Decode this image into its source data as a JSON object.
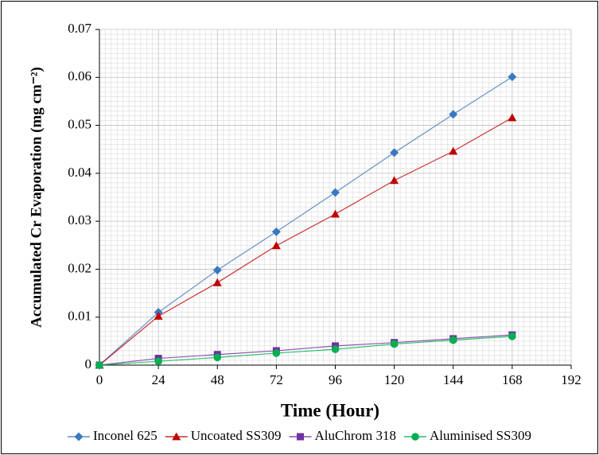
{
  "chart_data": {
    "type": "line",
    "x_label": "Time (Hour)",
    "y_label": "Accumulated Cr Evaporation (mg cm⁻²)",
    "x": [
      0,
      24,
      48,
      72,
      96,
      120,
      144,
      168
    ],
    "series": [
      {
        "name": "Inconel 625",
        "color": "#3b78c2",
        "marker": "diamond",
        "values": [
          0,
          0.011,
          0.0198,
          0.0278,
          0.036,
          0.0443,
          0.0523,
          0.0601
        ]
      },
      {
        "name": "Uncoated SS309",
        "color": "#c00000",
        "marker": "triangle",
        "values": [
          0,
          0.0102,
          0.0172,
          0.0249,
          0.0315,
          0.0385,
          0.0446,
          0.0516
        ]
      },
      {
        "name": "AluChrom 318",
        "color": "#7030a0",
        "marker": "square",
        "values": [
          0,
          0.0014,
          0.0022,
          0.003,
          0.004,
          0.0047,
          0.0055,
          0.0063
        ]
      },
      {
        "name": "Aluminised SS309",
        "color": "#00b050",
        "marker": "circle",
        "values": [
          0,
          0.0008,
          0.0016,
          0.0025,
          0.0033,
          0.0044,
          0.0052,
          0.006
        ]
      }
    ],
    "xlim": [
      0,
      192
    ],
    "xticks": [
      0,
      24,
      48,
      72,
      96,
      120,
      144,
      168,
      192
    ],
    "ylim": [
      0,
      0.07
    ],
    "yticks": [
      0,
      0.01,
      0.02,
      0.03,
      0.04,
      0.05,
      0.06,
      0.07
    ],
    "grid": true,
    "minor_grid_per_tick": [
      10,
      10
    ],
    "legend": "bottom"
  }
}
